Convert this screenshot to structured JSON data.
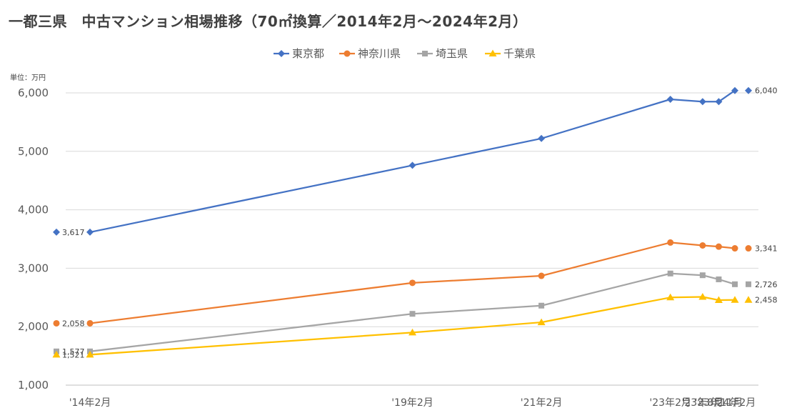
{
  "chart_data": {
    "type": "line",
    "title": "一都三県　中古マンション相場推移（70㎡換算／2014年2月～2024年2月）",
    "ylabel": "単位：万円",
    "ylim": [
      1000,
      6000
    ],
    "yticks": [
      "1,000",
      "2,000",
      "3,000",
      "4,000",
      "5,000",
      "6,000"
    ],
    "grid": true,
    "legend_position": "top",
    "categories": [
      "'14年2月",
      "'19年2月",
      "'21年2月",
      "'23年2月",
      "'23年8月",
      "'23年11月",
      "'24年2月"
    ],
    "x_dates": [
      "2014-02",
      "2019-02",
      "2021-02",
      "2023-02",
      "2023-08",
      "2023-11",
      "2024-02"
    ],
    "series": [
      {
        "name": "東京都",
        "color": "#4472c4",
        "marker": "diamond",
        "values": [
          3617,
          4760,
          5220,
          5890,
          5850,
          5850,
          6040
        ],
        "start_label": "3,617",
        "end_label": "6,040"
      },
      {
        "name": "神奈川県",
        "color": "#ed7d31",
        "marker": "circle",
        "values": [
          2058,
          2750,
          2870,
          3440,
          3390,
          3370,
          3341
        ],
        "start_label": "2,058",
        "end_label": "3,341"
      },
      {
        "name": "埼玉県",
        "color": "#a5a5a5",
        "marker": "square",
        "values": [
          1577,
          2220,
          2360,
          2910,
          2880,
          2810,
          2726
        ],
        "start_label": "1,577",
        "end_label": "2,726"
      },
      {
        "name": "千葉県",
        "color": "#ffc000",
        "marker": "triangle",
        "values": [
          1521,
          1900,
          2075,
          2500,
          2510,
          2455,
          2458
        ],
        "start_label": "1,521",
        "end_label": "2,458"
      }
    ]
  }
}
